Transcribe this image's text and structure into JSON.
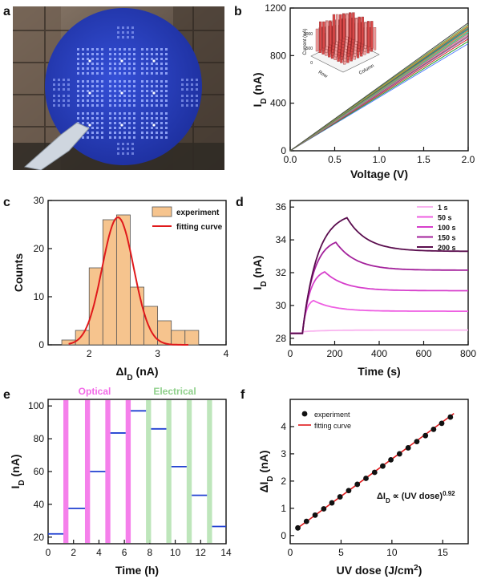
{
  "panels": {
    "a": "a",
    "b": "b",
    "c": "c",
    "d": "d",
    "e": "e",
    "f": "f"
  },
  "colors": {
    "wafer_blue": "#2a3fbf",
    "hist_fill": "#f6c48e",
    "fit_red": "#e0191b",
    "optical_band": "#f36ae8",
    "electrical_band": "#b7e3b4",
    "trace_blue": "#1f3fd1",
    "dark": "#111111"
  },
  "chart_data": [
    {
      "id": "a",
      "type": "image",
      "description_icon": "wafer-photo"
    },
    {
      "id": "b",
      "type": "line",
      "xlabel": "Voltage (V)",
      "ylabel": "I",
      "ylabel_sub": "D",
      "ylabel_unit": "(nA)",
      "xlim": [
        0,
        2.0
      ],
      "ylim": [
        0,
        1200
      ],
      "xticks": [
        "0.0",
        "0.5",
        "1.0",
        "1.5",
        "2.0"
      ],
      "yticks": [
        "0",
        "400",
        "800",
        "1200"
      ],
      "ytick_values": [
        0,
        400,
        800,
        1200
      ],
      "xtick_values": [
        0,
        0.5,
        1.0,
        1.5,
        2.0
      ],
      "series_end_values": [
        900,
        920,
        940,
        955,
        965,
        975,
        985,
        995,
        1000,
        1010,
        1020,
        1030,
        1040,
        1045,
        1050,
        1060,
        1075
      ],
      "series_colors": [
        "#4e79ff",
        "#2ca02c",
        "#d62728",
        "#9467bd",
        "#8c564b",
        "#e377c2",
        "#7f7f7f",
        "#bcbd22",
        "#17becf",
        "#ff7f0e",
        "#1f77b4",
        "#3a8f3a",
        "#a05195",
        "#6aa84f",
        "#f28e2b",
        "#59a14f",
        "#4c4c4c"
      ],
      "inset": {
        "zlabel": "Current (nA)",
        "xlabel": "Row",
        "ylabel": "Column",
        "zticks": [
          "0",
          "500",
          "1000"
        ],
        "bar_grid": 10
      }
    },
    {
      "id": "c",
      "type": "histogram",
      "xlabel": "ΔI",
      "xlabel_sub": "D",
      "xlabel_unit": "(nA)",
      "ylabel": "Counts",
      "xlim": [
        1.4,
        4.0
      ],
      "ylim": [
        0,
        30
      ],
      "xticks": [
        "2",
        "3",
        "4"
      ],
      "xtick_values": [
        2,
        3,
        4
      ],
      "yticks": [
        "0",
        "10",
        "20",
        "30"
      ],
      "ytick_values": [
        0,
        10,
        20,
        30
      ],
      "bin_edges": [
        1.6,
        1.8,
        2.0,
        2.2,
        2.4,
        2.6,
        2.8,
        3.0,
        3.2,
        3.4,
        3.6
      ],
      "counts": [
        1,
        3,
        16,
        26,
        27,
        12,
        8,
        5,
        3,
        3
      ],
      "fit": {
        "type": "gaussian",
        "mu": 2.42,
        "sigma": 0.23,
        "amplitude": 26.5,
        "x_range": [
          1.7,
          3.45
        ]
      },
      "legend": [
        "experiment",
        "fitting curve"
      ]
    },
    {
      "id": "d",
      "type": "line",
      "xlabel": "Time (s)",
      "ylabel": "I",
      "ylabel_sub": "D",
      "ylabel_unit": "(nA)",
      "xlim": [
        0,
        800
      ],
      "ylim": [
        27.6,
        36.4
      ],
      "xticks": [
        "0",
        "200",
        "400",
        "600",
        "800"
      ],
      "xtick_values": [
        0,
        200,
        400,
        600,
        800
      ],
      "yticks": [
        "28",
        "30",
        "32",
        "34",
        "36"
      ],
      "ytick_values": [
        28,
        30,
        32,
        34,
        36
      ],
      "baseline": 28.3,
      "t_start": 55,
      "series": [
        {
          "name": "1 s",
          "duration": 1,
          "peak": 28.4,
          "final": 28.5,
          "color": "#f9b3ef"
        },
        {
          "name": "50 s",
          "duration": 50,
          "peak": 30.3,
          "final": 29.65,
          "color": "#ee5fe2"
        },
        {
          "name": "100 s",
          "duration": 100,
          "peak": 32.05,
          "final": 30.9,
          "color": "#d63fcb"
        },
        {
          "name": "150 s",
          "duration": 150,
          "peak": 33.85,
          "final": 32.15,
          "color": "#a3219b"
        },
        {
          "name": "200 s",
          "duration": 200,
          "peak": 35.35,
          "final": 33.3,
          "color": "#5a0d4e"
        }
      ]
    },
    {
      "id": "e",
      "type": "step",
      "xlabel": "Time (h)",
      "ylabel": "I",
      "ylabel_sub": "D",
      "ylabel_unit": "(nA)",
      "xlim": [
        0,
        14
      ],
      "ylim": [
        16,
        104
      ],
      "xticks": [
        "0",
        "2",
        "4",
        "6",
        "8",
        "10",
        "12",
        "14"
      ],
      "xtick_values": [
        0,
        2,
        4,
        6,
        8,
        10,
        12,
        14
      ],
      "yticks": [
        "20",
        "40",
        "60",
        "80",
        "100"
      ],
      "ytick_values": [
        20,
        40,
        60,
        80,
        100
      ],
      "optical_label": "Optical",
      "electrical_label": "Electrical",
      "optical_bands": [
        [
          1.2,
          1.6
        ],
        [
          2.9,
          3.3
        ],
        [
          4.5,
          4.9
        ],
        [
          6.1,
          6.5
        ]
      ],
      "electrical_bands": [
        [
          7.7,
          8.1
        ],
        [
          9.3,
          9.7
        ],
        [
          10.9,
          11.3
        ],
        [
          12.5,
          12.9
        ]
      ],
      "levels": [
        {
          "x": [
            0,
            1.2
          ],
          "y": 22
        },
        {
          "x": [
            1.6,
            2.9
          ],
          "y": 37.5
        },
        {
          "x": [
            3.3,
            4.5
          ],
          "y": 60
        },
        {
          "x": [
            4.9,
            6.1
          ],
          "y": 83.5
        },
        {
          "x": [
            6.5,
            7.7
          ],
          "y": 97
        },
        {
          "x": [
            8.1,
            9.3
          ],
          "y": 86
        },
        {
          "x": [
            9.7,
            10.9
          ],
          "y": 63
        },
        {
          "x": [
            11.3,
            12.5
          ],
          "y": 45.5
        },
        {
          "x": [
            12.9,
            14
          ],
          "y": 26.5
        }
      ]
    },
    {
      "id": "f",
      "type": "scatter",
      "xlabel": "UV dose (J/cm",
      "xlabel_sup": "2",
      "xlabel_end": ")",
      "ylabel": "ΔI",
      "ylabel_sub": "D",
      "ylabel_unit": "(nA)",
      "xlim": [
        0,
        17.5
      ],
      "ylim": [
        -0.3,
        5.0
      ],
      "xticks": [
        "0",
        "5",
        "10",
        "15"
      ],
      "xtick_values": [
        0,
        5,
        10,
        15
      ],
      "yticks": [
        "0",
        "1",
        "2",
        "3",
        "4"
      ],
      "ytick_values": [
        0,
        1,
        2,
        3,
        4
      ],
      "x": [
        0.75,
        1.6,
        2.45,
        3.3,
        4.1,
        4.9,
        5.75,
        6.6,
        7.45,
        8.3,
        9.1,
        9.9,
        10.75,
        11.6,
        12.45,
        13.3,
        14.1,
        14.9,
        15.75
      ],
      "y": [
        0.28,
        0.52,
        0.75,
        0.98,
        1.2,
        1.42,
        1.65,
        1.88,
        2.1,
        2.32,
        2.55,
        2.78,
        3.0,
        3.22,
        3.45,
        3.67,
        3.9,
        4.12,
        4.35
      ],
      "fit_line": {
        "x": [
          0.6,
          16.1
        ],
        "y": [
          0.24,
          4.48
        ]
      },
      "legend": [
        "experiment",
        "fitting curve"
      ],
      "annotation": "ΔI",
      "annotation_sub": "D",
      "annotation_rest": " ∝ (UV dose)",
      "annotation_sup": "0.92"
    }
  ]
}
